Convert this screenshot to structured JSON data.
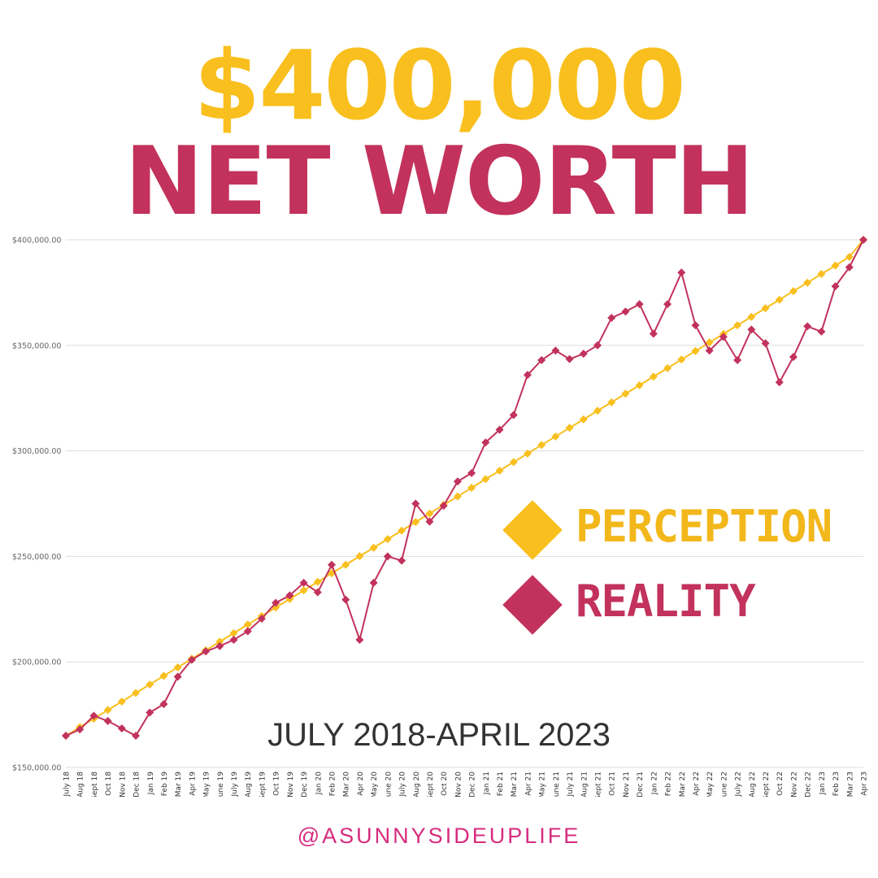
{
  "headline": {
    "amount": "$400,000",
    "label": "NET WORTH"
  },
  "legend": {
    "perception": "PERCEPTION",
    "reality": "REALITY"
  },
  "date_range": "JULY 2018-APRIL 2023",
  "handle": "@ASUNNYSIDEUPLIFE",
  "colors": {
    "perception": "#F9BF1E",
    "reality": "#C2325C",
    "handle": "#D62C7E",
    "grid": "#DDDDDD"
  },
  "chart_data": {
    "type": "line",
    "title": "",
    "xlabel": "",
    "ylabel": "",
    "ylim": [
      150000,
      400000
    ],
    "y_ticks": [
      150000,
      200000,
      250000,
      300000,
      350000,
      400000
    ],
    "y_tick_labels": [
      "$150,000.00",
      "$200,000.00",
      "$250,000.00",
      "$300,000.00",
      "$350,000.00",
      "$400,000.00"
    ],
    "grid": "horizontal",
    "legend_position": "right",
    "categories": [
      "July 18",
      "Aug 18",
      "Sept 18",
      "Oct 18",
      "Nov 18",
      "Dec 18",
      "Jan 19",
      "Feb 19",
      "Mar 19",
      "Apr 19",
      "May 19",
      "June 19",
      "July 19",
      "Aug 19",
      "Sept 19",
      "Oct 19",
      "Nov 19",
      "Dec 19",
      "Jan 20",
      "Feb 20",
      "Mar 20",
      "Apr 20",
      "May 20",
      "June 20",
      "July 20",
      "Aug 20",
      "Sept 20",
      "Oct 20",
      "Nov 20",
      "Dec 20",
      "Jan 21",
      "Feb 21",
      "Mar 21",
      "Apr 21",
      "May 21",
      "June 21",
      "July 21",
      "Aug 21",
      "Sept 21",
      "Oct 21",
      "Nov 21",
      "Dec 21",
      "Jan 22",
      "Feb 22",
      "Mar 22",
      "Apr 22",
      "May 22",
      "June 22",
      "July 22",
      "Aug 22",
      "Sept 22",
      "Oct 22",
      "Nov 22",
      "Dec 22",
      "Jan 23",
      "Feb 23",
      "Mar 23",
      "Apr 23"
    ],
    "series": [
      {
        "name": "PERCEPTION",
        "color": "#F9BF1E",
        "values": [
          165000,
          169100,
          173100,
          177200,
          181200,
          185300,
          189300,
          193400,
          197400,
          201500,
          205500,
          209600,
          213600,
          217700,
          221700,
          225800,
          229800,
          233900,
          237900,
          242000,
          246000,
          250100,
          254100,
          258200,
          262200,
          266300,
          270300,
          274400,
          278400,
          282500,
          286600,
          290600,
          294700,
          298700,
          302800,
          306800,
          310900,
          314900,
          319000,
          323000,
          327100,
          331100,
          335200,
          339200,
          343300,
          347300,
          351400,
          355400,
          359500,
          363500,
          367600,
          371600,
          375700,
          379700,
          383800,
          387800,
          391900,
          400000
        ]
      },
      {
        "name": "REALITY",
        "color": "#C2325C",
        "values": [
          165000,
          168000,
          174500,
          172000,
          168500,
          165000,
          176000,
          180000,
          193000,
          201000,
          205000,
          207500,
          210500,
          214500,
          220500,
          228000,
          231500,
          237500,
          233000,
          246000,
          229500,
          210500,
          237500,
          250000,
          248000,
          275000,
          266500,
          274000,
          285500,
          289500,
          304000,
          310000,
          317000,
          336000,
          343000,
          347500,
          343500,
          346000,
          350000,
          363000,
          366000,
          369500,
          355500,
          369500,
          384500,
          359500,
          347500,
          354000,
          343000,
          357500,
          351000,
          332500,
          344500,
          359000,
          356500,
          378000,
          387000,
          400000
        ]
      }
    ]
  }
}
